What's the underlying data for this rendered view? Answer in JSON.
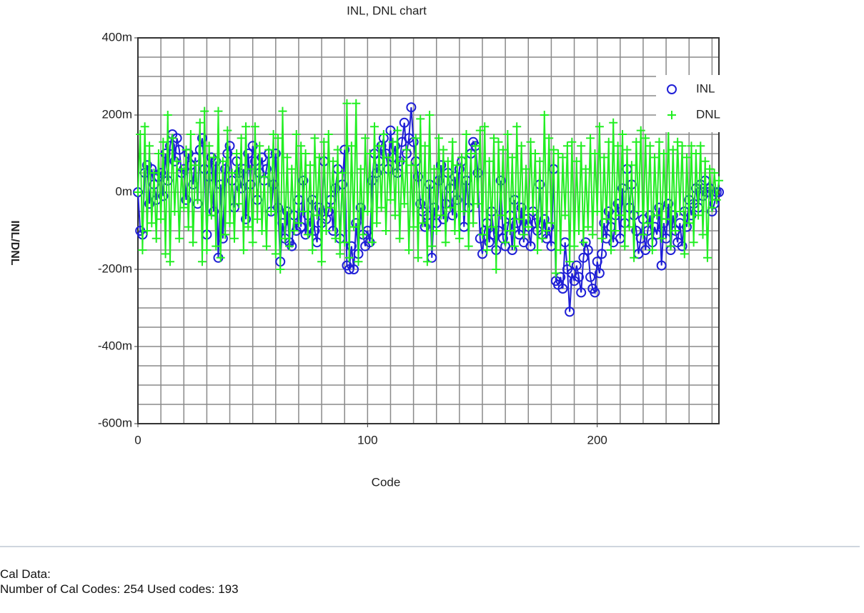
{
  "chart_data": {
    "type": "line",
    "title": "INL, DNL chart",
    "x_label": "Code",
    "y_label": "INL/DNL",
    "xlim": [
      0,
      253
    ],
    "ylim": [
      -0.6,
      0.4
    ],
    "xticks": [
      0,
      100,
      200
    ],
    "yticks": [
      {
        "value": -0.6,
        "label": "-600m"
      },
      {
        "value": -0.4,
        "label": "-400m"
      },
      {
        "value": -0.2,
        "label": "-200m"
      },
      {
        "value": 0,
        "label": "0m"
      },
      {
        "value": 0.2,
        "label": "200m"
      },
      {
        "value": 0.4,
        "label": "400m"
      }
    ],
    "xgrid": [
      0,
      10,
      20,
      30,
      40,
      50,
      60,
      70,
      80,
      90,
      100,
      110,
      120,
      130,
      140,
      150,
      160,
      170,
      180,
      190,
      200,
      210,
      220,
      230,
      240,
      250
    ],
    "ygrid": [
      -0.6,
      -0.55,
      -0.5,
      -0.45,
      -0.4,
      -0.35,
      -0.3,
      -0.25,
      -0.2,
      -0.15,
      -0.1,
      -0.05,
      0,
      0.05,
      0.1,
      0.15,
      0.2,
      0.25,
      0.3,
      0.35,
      0.4
    ],
    "grid": true,
    "legend": "upper right",
    "series": [
      {
        "name": "INL",
        "color": "#1f1fd6",
        "marker": "circle",
        "values": [
          0.0,
          -0.1,
          -0.11,
          0.05,
          0.07,
          -0.03,
          0.06,
          0.02,
          -0.02,
          0.04,
          0.05,
          -0.01,
          0.1,
          0.03,
          0.12,
          0.15,
          0.08,
          0.14,
          0.11,
          0.05,
          0.06,
          -0.02,
          0.1,
          0.07,
          0.02,
          0.09,
          -0.03,
          0.11,
          0.14,
          0.06,
          -0.11,
          0.04,
          0.09,
          -0.05,
          0.08,
          -0.17,
          0.02,
          -0.12,
          0.06,
          0.1,
          0.12,
          0.03,
          -0.04,
          0.08,
          0.05,
          0.01,
          0.06,
          -0.07,
          0.1,
          0.02,
          0.12,
          0.08,
          -0.02,
          0.05,
          0.09,
          0.03,
          0.06,
          0.1,
          -0.05,
          0.02,
          0.1,
          -0.04,
          -0.18,
          -0.08,
          -0.12,
          -0.05,
          -0.13,
          -0.14,
          -0.06,
          -0.1,
          -0.02,
          -0.09,
          0.03,
          -0.11,
          -0.06,
          -0.09,
          -0.02,
          -0.1,
          -0.13,
          -0.04,
          -0.08,
          0.08,
          -0.07,
          -0.05,
          -0.02,
          -0.1,
          0.01,
          0.06,
          -0.12,
          0.02,
          0.11,
          -0.19,
          -0.2,
          -0.14,
          -0.2,
          -0.08,
          -0.16,
          -0.04,
          -0.11,
          -0.14,
          -0.1,
          -0.13,
          0.03,
          0.1,
          0.05,
          0.08,
          0.12,
          0.14,
          0.1,
          0.06,
          0.16,
          0.09,
          0.12,
          0.05,
          0.08,
          0.13,
          0.18,
          0.1,
          0.14,
          0.22,
          0.13,
          0.08,
          0.04,
          -0.03,
          -0.05,
          -0.09,
          -0.06,
          0.02,
          -0.17,
          -0.04,
          -0.08,
          0.03,
          0.07,
          -0.07,
          -0.03,
          0.05,
          0.01,
          -0.06,
          0.04,
          -0.02,
          0.06,
          0.08,
          -0.09,
          0.03,
          -0.04,
          0.1,
          0.13,
          0.12,
          0.05,
          -0.12,
          -0.16,
          -0.1,
          -0.08,
          -0.13,
          -0.05,
          -0.11,
          -0.15,
          -0.1,
          0.03,
          -0.12,
          -0.14,
          -0.09,
          -0.06,
          -0.15,
          -0.02,
          -0.08,
          -0.11,
          -0.04,
          -0.13,
          -0.07,
          -0.09,
          -0.14,
          -0.05,
          -0.08,
          -0.1,
          0.02,
          -0.11,
          -0.07,
          -0.12,
          -0.09,
          -0.14,
          0.06,
          -0.23,
          -0.24,
          -0.22,
          -0.25,
          -0.13,
          -0.2,
          -0.31,
          -0.21,
          -0.23,
          -0.19,
          -0.22,
          -0.26,
          -0.17,
          -0.13,
          -0.15,
          -0.22,
          -0.25,
          -0.26,
          -0.18,
          -0.21,
          -0.16,
          -0.08,
          -0.12,
          -0.05,
          -0.09,
          -0.13,
          -0.06,
          -0.03,
          -0.12,
          0.01,
          -0.08,
          0.06,
          -0.04,
          0.02,
          -0.06,
          -0.1,
          -0.16,
          -0.12,
          -0.07,
          -0.15,
          -0.1,
          -0.06,
          -0.13,
          -0.09,
          -0.11,
          -0.04,
          -0.19,
          -0.08,
          -0.12,
          -0.03,
          -0.15,
          -0.06,
          -0.1,
          -0.13,
          -0.08,
          -0.14,
          -0.05,
          -0.09,
          -0.02,
          -0.06,
          -0.03,
          0.01,
          -0.04,
          0.02,
          -0.01,
          0.03,
          0.0,
          0.01,
          -0.05,
          -0.03,
          0.0,
          0.0
        ]
      },
      {
        "name": "DNL",
        "color": "#22ee22",
        "marker": "plus",
        "values": [
          0.0,
          0.15,
          -0.15,
          0.17,
          -0.1,
          0.12,
          -0.08,
          0.05,
          -0.12,
          0.1,
          -0.07,
          0.13,
          -0.16,
          0.2,
          -0.18,
          0.14,
          -0.05,
          0.08,
          -0.12,
          0.06,
          -0.04,
          0.11,
          -0.09,
          0.15,
          -0.13,
          0.07,
          -0.02,
          0.18,
          -0.18,
          0.21,
          -0.15,
          0.12,
          -0.06,
          0.09,
          -0.14,
          0.21,
          -0.17,
          0.08,
          -0.11,
          0.16,
          -0.08,
          0.05,
          -0.12,
          0.1,
          -0.03,
          0.14,
          -0.15,
          0.17,
          -0.09,
          0.06,
          -0.13,
          0.17,
          -0.07,
          0.12,
          -0.1,
          0.04,
          -0.14,
          0.11,
          -0.05,
          0.15,
          -0.16,
          0.14,
          -0.2,
          0.21,
          -0.12,
          0.09,
          -0.14,
          0.06,
          -0.1,
          0.15,
          -0.08,
          0.12,
          -0.05,
          0.1,
          -0.11,
          0.07,
          -0.15,
          0.14,
          -0.06,
          0.09,
          -0.18,
          0.13,
          -0.1,
          0.15,
          -0.04,
          0.08,
          -0.12,
          0.11,
          -0.16,
          0.05,
          -0.13,
          0.23,
          -0.17,
          0.12,
          -0.09,
          0.23,
          -0.18,
          0.06,
          -0.11,
          0.14,
          -0.05,
          0.1,
          -0.13,
          0.17,
          -0.08,
          0.12,
          -0.04,
          0.15,
          -0.1,
          0.09,
          -0.02,
          0.13,
          -0.06,
          0.16,
          -0.12,
          0.08,
          -0.03,
          0.11,
          -0.15,
          0.07,
          -0.09,
          0.14,
          -0.17,
          0.19,
          -0.08,
          0.12,
          -0.18,
          0.2,
          -0.14,
          0.06,
          -0.1,
          0.14,
          -0.06,
          0.11,
          -0.13,
          0.08,
          -0.04,
          0.13,
          -0.1,
          0.07,
          -0.12,
          0.09,
          -0.05,
          0.15,
          -0.14,
          0.1,
          -0.08,
          0.12,
          -0.03,
          0.16,
          -0.11,
          0.17,
          -0.15,
          0.08,
          -0.09,
          0.14,
          -0.2,
          0.13,
          -0.06,
          0.11,
          -0.13,
          0.15,
          -0.1,
          0.09,
          -0.14,
          0.17,
          -0.07,
          0.12,
          -0.11,
          0.06,
          -0.09,
          0.13,
          -0.05,
          0.1,
          -0.15,
          0.08,
          -0.12,
          0.2,
          -0.1,
          0.14,
          -0.08,
          0.11,
          -0.21,
          0.1,
          -0.15,
          0.09,
          -0.06,
          0.12,
          -0.18,
          0.13,
          -0.14,
          0.08,
          -0.1,
          0.12,
          -0.13,
          0.06,
          -0.09,
          0.14,
          -0.11,
          0.1,
          -0.05,
          0.17,
          -0.12,
          0.09,
          -0.07,
          0.13,
          -0.15,
          0.18,
          -0.1,
          0.12,
          -0.06,
          0.15,
          -0.14,
          0.11,
          -0.09,
          0.07,
          -0.17,
          0.13,
          -0.05,
          0.16,
          -0.11,
          0.14,
          -0.08,
          0.12,
          -0.15,
          0.09,
          -0.06,
          0.13,
          -0.12,
          0.1,
          -0.07,
          0.16,
          -0.14,
          0.11,
          -0.1,
          0.13,
          -0.05,
          0.12,
          -0.16,
          0.09,
          -0.08,
          0.12,
          -0.13,
          0.1,
          -0.06,
          0.12,
          -0.11,
          0.08,
          -0.17,
          0.06,
          -0.04,
          0.05,
          -0.02,
          0.03
        ]
      }
    ]
  },
  "footer": {
    "heading": "Cal Data:",
    "info": "Number of Cal Codes: 254 Used codes: 193"
  }
}
